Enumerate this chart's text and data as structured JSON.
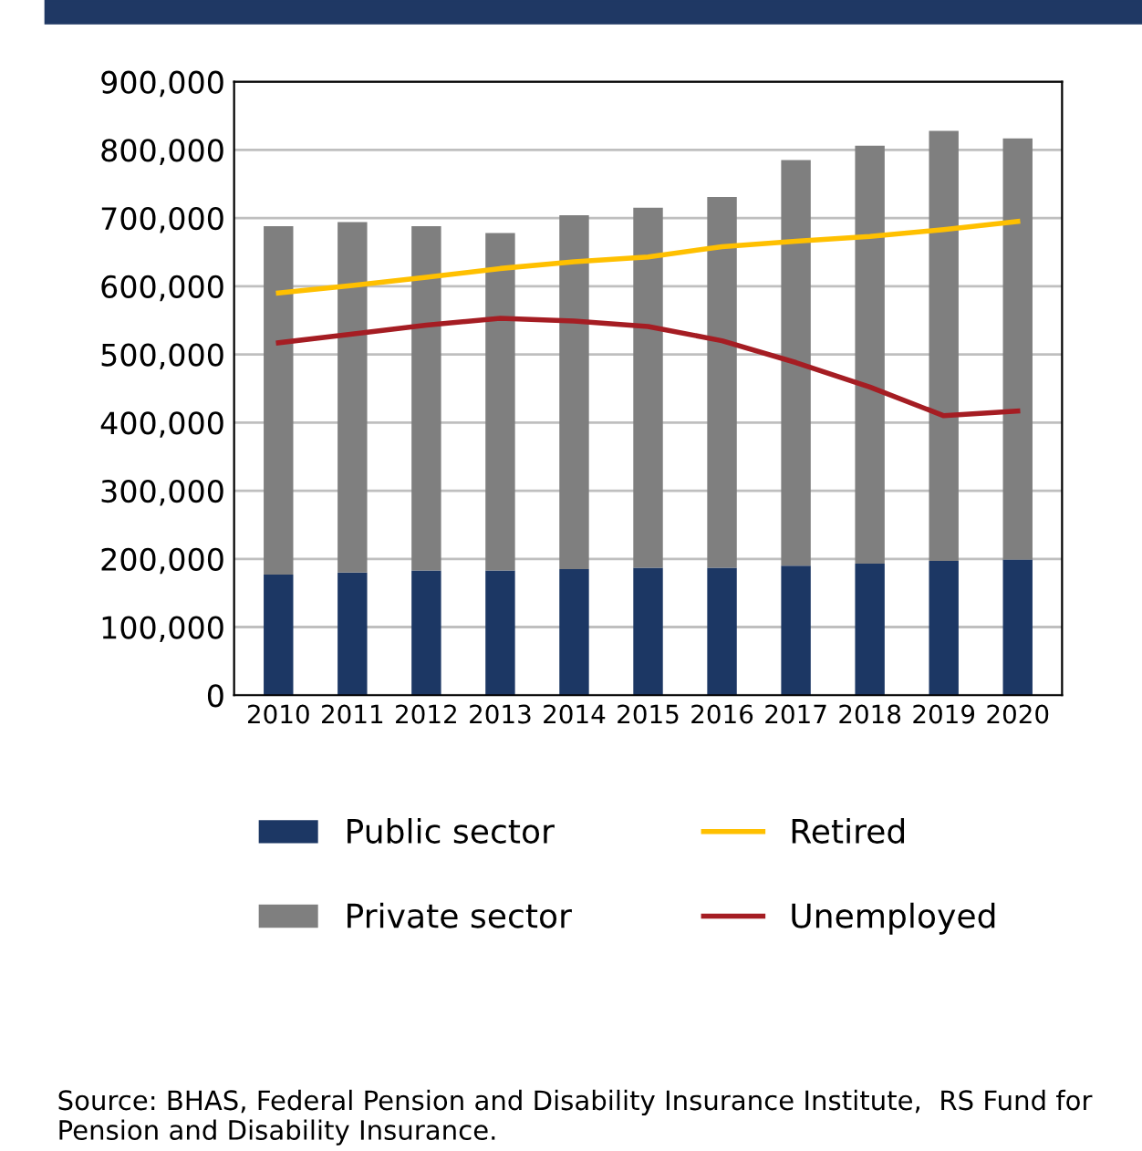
{
  "chart_data": {
    "type": "bar",
    "stacked": true,
    "categories": [
      "2010",
      "2011",
      "2012",
      "2013",
      "2014",
      "2015",
      "2016",
      "2017",
      "2018",
      "2019",
      "2020"
    ],
    "series": [
      {
        "name": "Public sector",
        "color": "#1c3764",
        "values": [
          177000,
          180000,
          183000,
          183000,
          185000,
          187000,
          187000,
          190000,
          193000,
          197000,
          199000
        ]
      },
      {
        "name": "Private sector",
        "color": "#7f7f7f",
        "values": [
          511000,
          514000,
          505000,
          495000,
          519000,
          528000,
          544000,
          595000,
          613000,
          631000,
          618000
        ]
      },
      {
        "name": "Retired",
        "type": "line",
        "color": "#ffc000",
        "values": [
          590000,
          601000,
          613000,
          626000,
          636000,
          643000,
          658000,
          666000,
          673000,
          683000,
          695000
        ]
      },
      {
        "name": "Unemployed",
        "type": "line",
        "color": "#a51d23",
        "values": [
          517000,
          530000,
          543000,
          553000,
          549000,
          541000,
          520000,
          488000,
          452000,
          410000,
          417000
        ]
      }
    ],
    "ylim": [
      0,
      900000
    ],
    "yticks": [
      {
        "value": 0,
        "label": "0"
      },
      {
        "value": 100000,
        "label": "100,000"
      },
      {
        "value": 200000,
        "label": "200,000"
      },
      {
        "value": 300000,
        "label": "300,000"
      },
      {
        "value": 400000,
        "label": "400,000"
      },
      {
        "value": 500000,
        "label": "500,000"
      },
      {
        "value": 600000,
        "label": "600,000"
      },
      {
        "value": 700000,
        "label": "700,000"
      },
      {
        "value": 800000,
        "label": "800,000"
      },
      {
        "value": 900000,
        "label": "900,000"
      }
    ],
    "grid": "y",
    "legend": "bottom",
    "annotations": [
      "Source: BHAS, Federal Pension and Disability Insurance Institute,  RS Fund for Pension and Disability Insurance."
    ]
  }
}
